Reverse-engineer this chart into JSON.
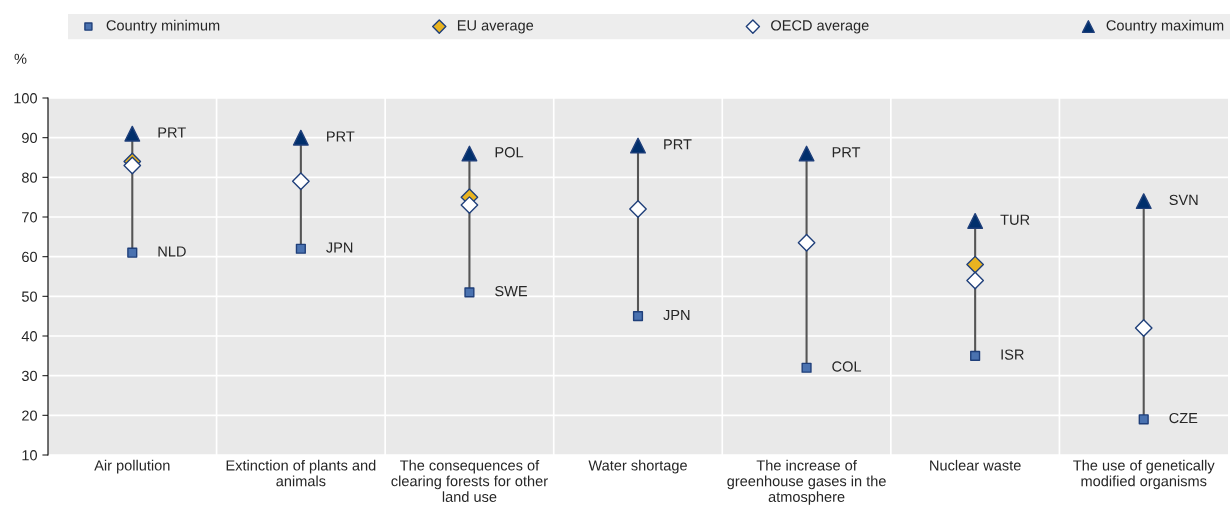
{
  "chart_data": {
    "type": "scatter",
    "ylabel": "%",
    "categories": [
      "Air pollution",
      "Extinction of plants and\nanimals",
      "The consequences of\nclearing forests for other\nland use",
      "Water shortage",
      "The increase of\ngreenhouse gases in the\natmosphere",
      "Nuclear waste",
      "The use of genetically\nmodified organisms"
    ],
    "series": [
      {
        "name": "Country minimum",
        "color": "#4a72b0",
        "marker": "square",
        "values": [
          61,
          62,
          51,
          45,
          32,
          35,
          19
        ],
        "value_labels": [
          "NLD",
          "JPN",
          "SWE",
          "JPN",
          "COL",
          "ISR",
          "CZE"
        ]
      },
      {
        "name": "EU average",
        "color": "#e8b320",
        "marker": "diamond",
        "values": [
          84,
          null,
          75,
          null,
          null,
          58,
          null
        ]
      },
      {
        "name": "OECD average",
        "color": "#ffffff",
        "marker": "diamond",
        "values": [
          83,
          79,
          73,
          72,
          63.5,
          54,
          42
        ]
      },
      {
        "name": "Country maximum",
        "color": "#002f6c",
        "marker": "triangle",
        "values": [
          91,
          90,
          86,
          88,
          86,
          69,
          74
        ],
        "value_labels": [
          "PRT",
          "PRT",
          "POL",
          "PRT",
          "PRT",
          "TUR",
          "SVN"
        ]
      }
    ],
    "ylim": [
      10,
      100
    ],
    "yticks": [
      10,
      20,
      30,
      40,
      50,
      60,
      70,
      80,
      90,
      100
    ],
    "grid": true,
    "legend": "top"
  }
}
